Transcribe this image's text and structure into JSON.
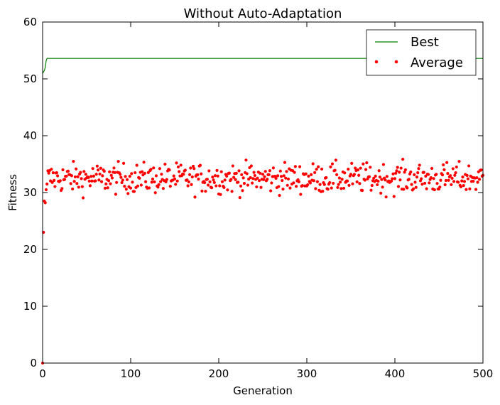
{
  "chart_data": {
    "type": "line",
    "title": "Without Auto-Adaptation",
    "xlabel": "Generation",
    "ylabel": "Fitness",
    "xlim": [
      0,
      500
    ],
    "ylim": [
      0,
      60
    ],
    "xticks": [
      0,
      100,
      200,
      300,
      400,
      500
    ],
    "yticks": [
      0,
      10,
      20,
      30,
      40,
      50,
      60
    ],
    "grid": false,
    "legend_position": "top-right",
    "series": [
      {
        "name": "Best",
        "style": "line",
        "color": "#008000",
        "x": [
          0,
          1,
          2,
          3,
          4,
          5,
          500
        ],
        "y": [
          51.0,
          51.2,
          51.5,
          52.0,
          53.2,
          53.6,
          53.6
        ]
      },
      {
        "name": "Average",
        "style": "markers",
        "color": "#ff0000",
        "summary": {
          "x_start": 0,
          "x_end": 500,
          "y_approx_range": [
            28,
            37
          ],
          "y_typical": 33,
          "first_values": [
            0.0,
            23.0,
            28.5,
            28.2,
            30.5,
            31.5
          ]
        }
      }
    ]
  }
}
